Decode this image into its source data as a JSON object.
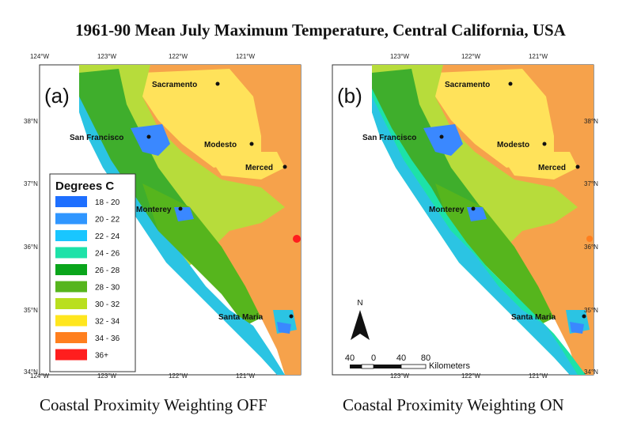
{
  "title": "1961-90 Mean July Maximum Temperature, Central California, USA",
  "panels": [
    {
      "label": "(a)",
      "caption": "Coastal Proximity Weighting OFF"
    },
    {
      "label": "(b)",
      "caption": "Coastal Proximity Weighting ON"
    }
  ],
  "top_longitudes_a": [
    "124°W",
    "123°W",
    "122°W",
    "121°W"
  ],
  "top_longitudes_b": [
    "123°W",
    "122°W",
    "121°W"
  ],
  "bottom_longitudes_a": [
    "124°W",
    "123°W",
    "122°W",
    "121°W"
  ],
  "bottom_longitudes_b": [
    "123°W",
    "122°W",
    "121°W"
  ],
  "left_latitudes": [
    "38°N",
    "37°N",
    "36°N",
    "35°N",
    "34°N"
  ],
  "right_latitudes": [
    "38°N",
    "37°N",
    "36°N",
    "35°N",
    "34°N"
  ],
  "cities": [
    "Sacramento",
    "San Francisco",
    "Modesto",
    "Merced",
    "Monterey",
    "Santa Maria"
  ],
  "legend": {
    "title": "Degrees C",
    "items": [
      {
        "label": "18 - 20",
        "color": "#1e6fff"
      },
      {
        "label": "20 - 22",
        "color": "#2f96ff"
      },
      {
        "label": "22 - 24",
        "color": "#19c6ff"
      },
      {
        "label": "24 - 26",
        "color": "#1de2a8"
      },
      {
        "label": "26 - 28",
        "color": "#0aa51b"
      },
      {
        "label": "28 - 30",
        "color": "#56b51d"
      },
      {
        "label": "30 - 32",
        "color": "#b9df1e"
      },
      {
        "label": "32 - 34",
        "color": "#ffe61e"
      },
      {
        "label": "34 - 36",
        "color": "#ff7f1e"
      },
      {
        "label": "36+",
        "color": "#ff1e1e"
      }
    ]
  },
  "north_arrow": "N",
  "scale_bar": {
    "ticks": [
      "40",
      "0",
      "40",
      "80"
    ],
    "unit": "Kilometers"
  },
  "colors": {
    "ocean": "#ffffff",
    "hot_valley": "#f6a24b",
    "central_valley": "#ffe25a",
    "foothills": "#b7dc3b",
    "coast_range": "#3fae2c",
    "coastal": "#2bc4e3",
    "bay": "#3a88ff"
  }
}
